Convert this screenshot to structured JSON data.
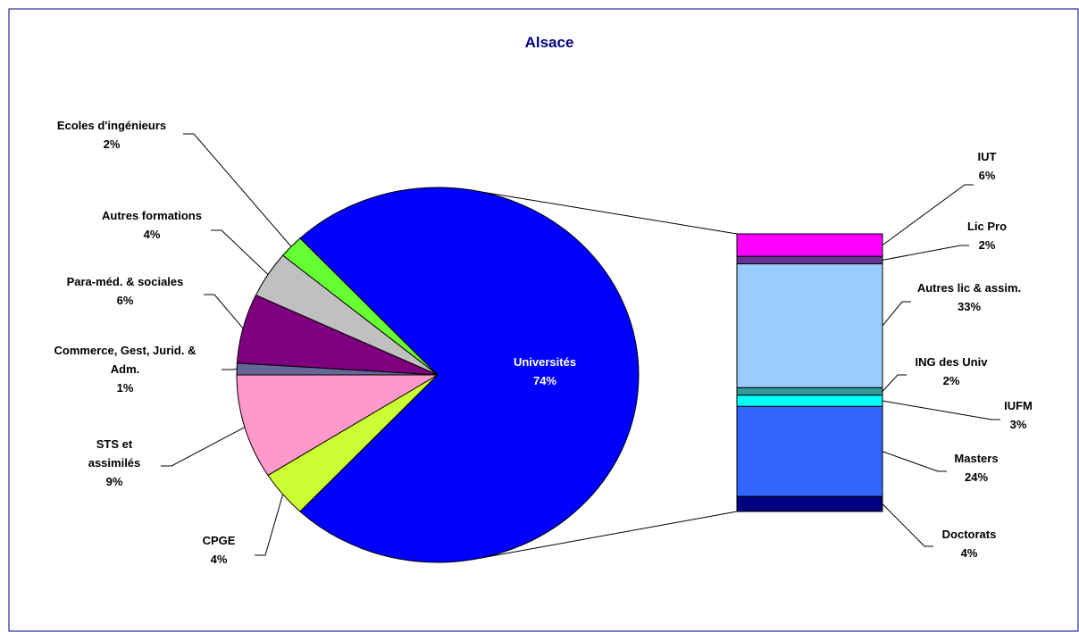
{
  "chart_data": {
    "type": "bar_of_pie",
    "title": "Alsace",
    "categories": [
      "Ecoles d'ingénieurs",
      "Autres formations",
      "Para-méd. & sociales",
      "Commerce, Gest, Jurid. & Adm.",
      "STS et assimilés",
      "CPGE",
      "Universités"
    ],
    "values": [
      2,
      4,
      6,
      1,
      9,
      4,
      74
    ],
    "value_labels": [
      "2%",
      "4%",
      "6%",
      "1%",
      "9%",
      "4%",
      "74%"
    ],
    "colors": [
      "#66ff33",
      "#c0c0c0",
      "#7e007e",
      "#666699",
      "#ff99cc",
      "#ccff33",
      "#0000ff"
    ],
    "breakdown": {
      "of": "Universités",
      "categories": [
        "IUT",
        "Lic Pro",
        "Autres lic & assim.",
        "ING des Univ",
        "IUFM",
        "Masters",
        "Doctorats"
      ],
      "values": [
        6,
        2,
        33,
        2,
        3,
        24,
        4
      ],
      "value_labels": [
        "6%",
        "2%",
        "33%",
        "2%",
        "3%",
        "24%",
        "4%"
      ],
      "colors": [
        "#ff00ff",
        "#663399",
        "#99ccff",
        "#339999",
        "#00ffff",
        "#3366ff",
        "#000080"
      ]
    }
  }
}
